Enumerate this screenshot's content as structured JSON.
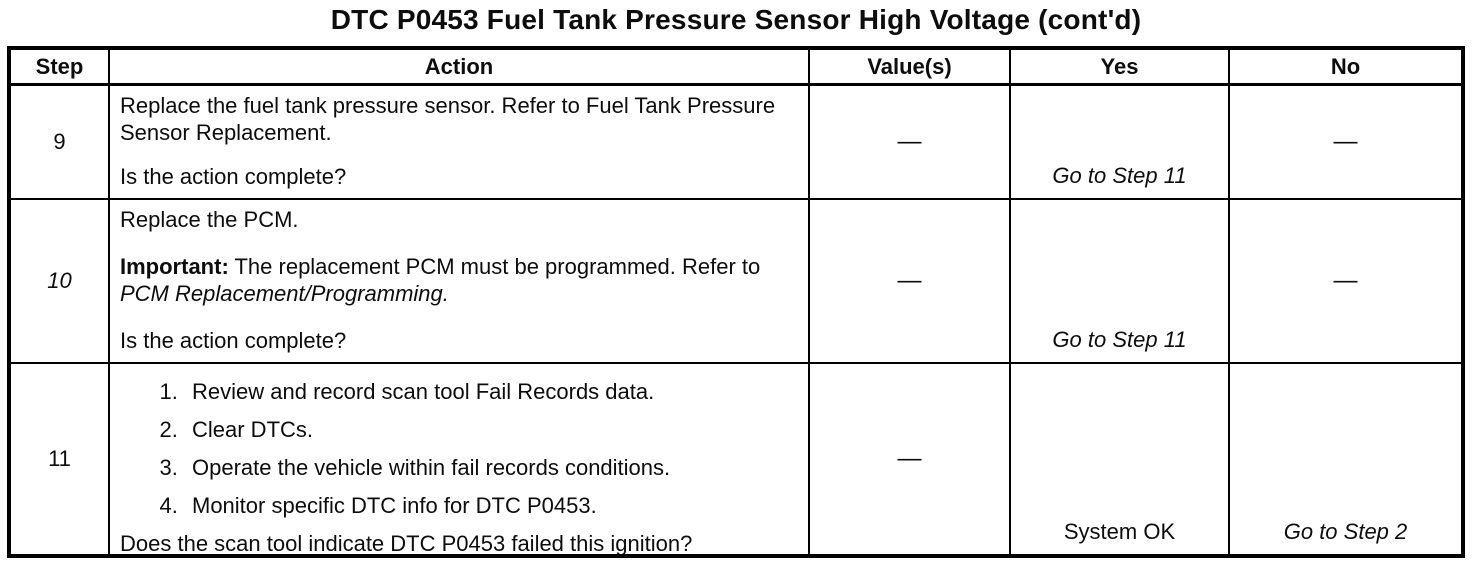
{
  "title": "DTC P0453 Fuel Tank Pressure Sensor High Voltage (cont'd)",
  "table": {
    "headers": {
      "step": "Step",
      "action": "Action",
      "values": "Value(s)",
      "yes": "Yes",
      "no": "No"
    },
    "rows": [
      {
        "step": "9",
        "action": {
          "text": "Replace the fuel tank pressure sensor. Refer to Fuel Tank Pressure Sensor Replacement.",
          "question": "Is the action complete?"
        },
        "value": "—",
        "yes": "Go to Step 11",
        "no": "—"
      },
      {
        "step": "10",
        "action": {
          "text": "Replace the PCM.",
          "important_label": "Important:",
          "important_text": " The replacement PCM must be programmed. Refer to ",
          "important_ref": "PCM Replacement/Programming.",
          "question": "Is the action complete?"
        },
        "value": "—",
        "yes": "Go to Step 11",
        "no": "—"
      },
      {
        "step": "11",
        "action": {
          "list": [
            "Review and record scan tool Fail Records data.",
            "Clear DTCs.",
            "Operate the vehicle within fail records conditions.",
            "Monitor specific DTC info for DTC P0453."
          ],
          "question": "Does the scan tool indicate DTC P0453 failed this ignition?"
        },
        "value": "—",
        "yes": "System OK",
        "no": "Go to Step 2"
      }
    ]
  }
}
